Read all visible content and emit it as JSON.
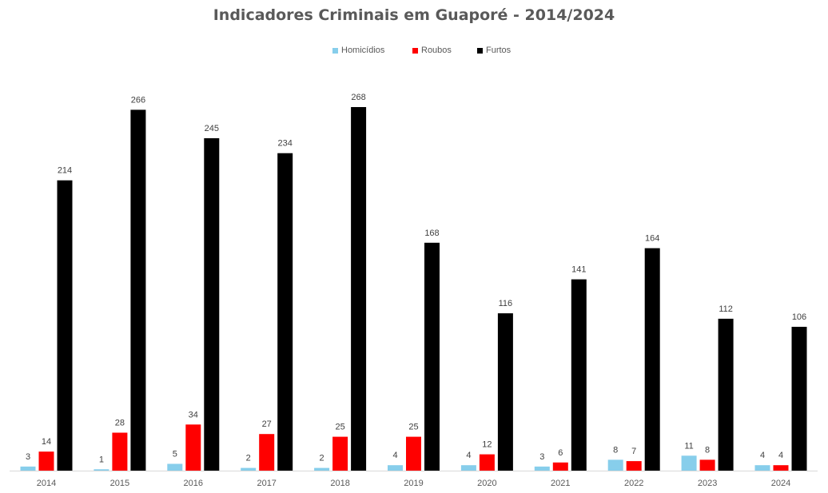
{
  "chart_data": {
    "type": "bar",
    "title": "Indicadores Criminais em Guaporé - 2014/2024",
    "categories": [
      "2014",
      "2015",
      "2016",
      "2017",
      "2018",
      "2019",
      "2020",
      "2021",
      "2022",
      "2023",
      "2024"
    ],
    "series": [
      {
        "name": "Homicídios",
        "color": "#87CEEB",
        "values": [
          3,
          1,
          5,
          2,
          2,
          4,
          4,
          3,
          8,
          11,
          4
        ]
      },
      {
        "name": "Roubos",
        "color": "#FF0000",
        "values": [
          14,
          28,
          34,
          27,
          25,
          25,
          12,
          6,
          7,
          8,
          4
        ]
      },
      {
        "name": "Furtos",
        "color": "#000000",
        "values": [
          214,
          266,
          245,
          234,
          268,
          168,
          116,
          141,
          164,
          112,
          106
        ]
      }
    ],
    "ylim": [
      0,
      268
    ],
    "grid": false,
    "legend_position": "top",
    "data_labels": true
  }
}
